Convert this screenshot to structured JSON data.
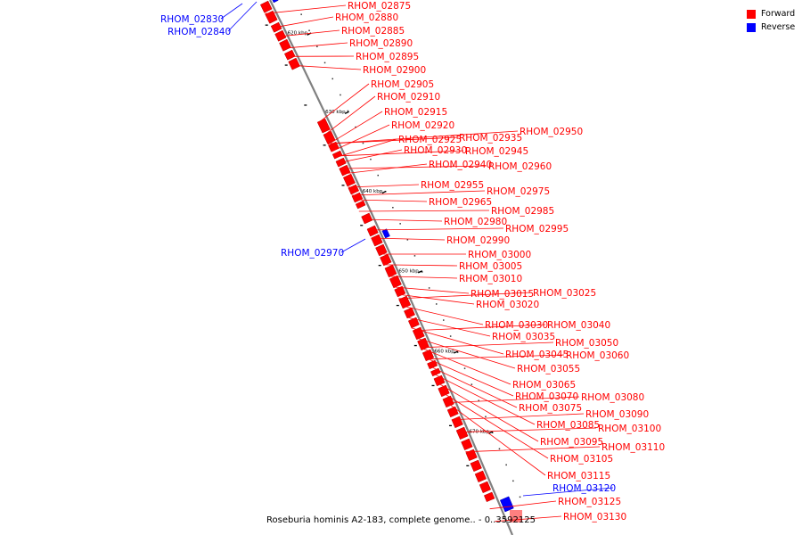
{
  "caption": "Roseburia hominis A2-183, complete genome.. - 0..3592125",
  "legend": [
    {
      "label": "Forward",
      "color": "#ff0000"
    },
    {
      "label": "Reverse",
      "color": "#0000ff"
    }
  ],
  "colors": {
    "forward": "#ff0000",
    "reverse": "#0000ff",
    "backbone": "#808080"
  },
  "ticks": [
    "620 kbp",
    "630 kbp",
    "640 kbp",
    "650 kbp",
    "660 kbp",
    "670 kbp"
  ],
  "genes": [
    {
      "id": "RHOM_02830",
      "strand": "reverse"
    },
    {
      "id": "RHOM_02840",
      "strand": "reverse"
    },
    {
      "id": "RHOM_02875",
      "strand": "forward"
    },
    {
      "id": "RHOM_02880",
      "strand": "forward"
    },
    {
      "id": "RHOM_02885",
      "strand": "forward"
    },
    {
      "id": "RHOM_02890",
      "strand": "forward"
    },
    {
      "id": "RHOM_02895",
      "strand": "forward"
    },
    {
      "id": "RHOM_02900",
      "strand": "forward"
    },
    {
      "id": "RHOM_02905",
      "strand": "forward"
    },
    {
      "id": "RHOM_02910",
      "strand": "forward"
    },
    {
      "id": "RHOM_02915",
      "strand": "forward"
    },
    {
      "id": "RHOM_02920",
      "strand": "forward"
    },
    {
      "id": "RHOM_02925",
      "strand": "forward"
    },
    {
      "id": "RHOM_02935",
      "strand": "forward"
    },
    {
      "id": "RHOM_02950",
      "strand": "forward"
    },
    {
      "id": "RHOM_02930",
      "strand": "forward"
    },
    {
      "id": "RHOM_02945",
      "strand": "forward"
    },
    {
      "id": "RHOM_02940",
      "strand": "forward"
    },
    {
      "id": "RHOM_02960",
      "strand": "forward"
    },
    {
      "id": "RHOM_02955",
      "strand": "forward"
    },
    {
      "id": "RHOM_02975",
      "strand": "forward"
    },
    {
      "id": "RHOM_02965",
      "strand": "forward"
    },
    {
      "id": "RHOM_02985",
      "strand": "forward"
    },
    {
      "id": "RHOM_02980",
      "strand": "forward"
    },
    {
      "id": "RHOM_02995",
      "strand": "forward"
    },
    {
      "id": "RHOM_02970",
      "strand": "reverse"
    },
    {
      "id": "RHOM_02990",
      "strand": "forward"
    },
    {
      "id": "RHOM_03000",
      "strand": "forward"
    },
    {
      "id": "RHOM_03005",
      "strand": "forward"
    },
    {
      "id": "RHOM_03010",
      "strand": "forward"
    },
    {
      "id": "RHOM_03015",
      "strand": "forward"
    },
    {
      "id": "RHOM_03025",
      "strand": "forward"
    },
    {
      "id": "RHOM_03020",
      "strand": "forward"
    },
    {
      "id": "RHOM_03030",
      "strand": "forward"
    },
    {
      "id": "RHOM_03040",
      "strand": "forward"
    },
    {
      "id": "RHOM_03035",
      "strand": "forward"
    },
    {
      "id": "RHOM_03050",
      "strand": "forward"
    },
    {
      "id": "RHOM_03045",
      "strand": "forward"
    },
    {
      "id": "RHOM_03060",
      "strand": "forward"
    },
    {
      "id": "RHOM_03055",
      "strand": "forward"
    },
    {
      "id": "RHOM_03065",
      "strand": "forward"
    },
    {
      "id": "RHOM_03070",
      "strand": "forward"
    },
    {
      "id": "RHOM_03080",
      "strand": "forward"
    },
    {
      "id": "RHOM_03075",
      "strand": "forward"
    },
    {
      "id": "RHOM_03090",
      "strand": "forward"
    },
    {
      "id": "RHOM_03085",
      "strand": "forward"
    },
    {
      "id": "RHOM_03100",
      "strand": "forward"
    },
    {
      "id": "RHOM_03095",
      "strand": "forward"
    },
    {
      "id": "RHOM_03110",
      "strand": "forward"
    },
    {
      "id": "RHOM_03105",
      "strand": "forward"
    },
    {
      "id": "RHOM_03115",
      "strand": "forward"
    },
    {
      "id": "RHOM_03120",
      "strand": "reverse"
    },
    {
      "id": "RHOM_03125",
      "strand": "forward"
    },
    {
      "id": "RHOM_03130",
      "strand": "forward"
    }
  ]
}
